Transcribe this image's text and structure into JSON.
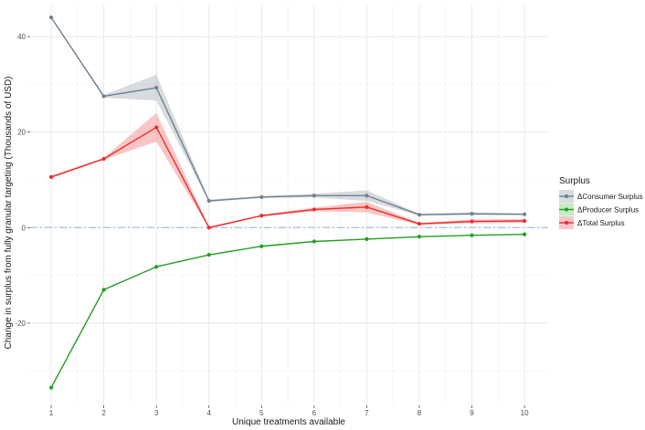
{
  "chart_data": {
    "type": "line",
    "title": "",
    "xlabel": "Unique treatments available",
    "ylabel": "Change in surplus from fully granular targeting (Thousands of USD)",
    "x": [
      1,
      2,
      3,
      4,
      5,
      6,
      7,
      8,
      9,
      10
    ],
    "xlim": [
      0.6,
      10.45
    ],
    "ylim": [
      -37.2,
      46.5
    ],
    "x_ticks": [
      "1",
      "2",
      "3",
      "4",
      "5",
      "6",
      "7",
      "8",
      "9",
      "10"
    ],
    "y_ticks": [
      -20,
      0,
      20,
      40
    ],
    "grid": true,
    "reference_line": {
      "y": 0,
      "style": "dash-dot",
      "color": "#b0c4de"
    },
    "legend": {
      "title": "Surplus",
      "position": "right"
    },
    "series": [
      {
        "name": "ΔConsumer Surplus",
        "color": "#708090",
        "band_color": "#a9b2bb",
        "values": [
          44.0,
          27.5,
          29.3,
          5.6,
          6.4,
          6.7,
          6.7,
          2.7,
          2.9,
          2.8
        ],
        "lower": [
          44.0,
          27.2,
          26.6,
          5.4,
          6.2,
          6.3,
          5.6,
          2.5,
          2.6,
          2.6
        ],
        "upper": [
          44.0,
          27.8,
          32.0,
          5.9,
          6.6,
          7.1,
          7.8,
          2.9,
          3.2,
          3.0
        ]
      },
      {
        "name": "ΔProducer Surplus",
        "color": "#22a022",
        "band_color": "#7fd07f",
        "values": [
          -33.5,
          -13.0,
          -8.2,
          -5.7,
          -3.9,
          -2.9,
          -2.4,
          -1.9,
          -1.6,
          -1.4
        ],
        "lower": [
          -33.5,
          -13.1,
          -8.3,
          -5.8,
          -4.0,
          -3.0,
          -2.5,
          -2.0,
          -1.7,
          -1.5
        ],
        "upper": [
          -33.5,
          -12.9,
          -8.1,
          -5.6,
          -3.8,
          -2.8,
          -2.3,
          -1.8,
          -1.5,
          -1.3
        ]
      },
      {
        "name": "ΔTotal Surplus",
        "color": "#ee2c2c",
        "band_color": "#f08080",
        "values": [
          10.6,
          14.4,
          21.0,
          0.0,
          2.5,
          3.8,
          4.3,
          0.8,
          1.3,
          1.4
        ],
        "lower": [
          10.3,
          14.2,
          18.0,
          -0.2,
          2.3,
          3.4,
          3.2,
          0.6,
          0.9,
          1.0
        ],
        "upper": [
          10.9,
          14.6,
          24.0,
          0.2,
          2.7,
          4.2,
          5.4,
          1.0,
          1.7,
          1.8
        ]
      }
    ]
  }
}
